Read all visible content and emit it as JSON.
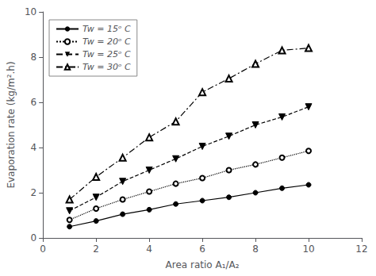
{
  "chart_data": {
    "type": "line",
    "xlabel": "Area ratio A₁/A₂",
    "ylabel": "Evaporation rate (kg/m².h)",
    "x": [
      1,
      2,
      3,
      4,
      5,
      6,
      7,
      8,
      9,
      10
    ],
    "series": [
      {
        "name": "Tw = 15ᵒ C",
        "color": "black",
        "line_style": "solid",
        "marker": "circle",
        "values": [
          0.5,
          0.75,
          1.05,
          1.25,
          1.5,
          1.65,
          1.8,
          2.0,
          2.2,
          2.35
        ]
      },
      {
        "name": "Tw = 20ᵒ C",
        "color": "black",
        "line_style": "dotted",
        "marker": "open circle",
        "values": [
          0.8,
          1.3,
          1.7,
          2.05,
          2.4,
          2.65,
          3.0,
          3.25,
          3.55,
          3.85
        ]
      },
      {
        "name": "Tw = 25ᵒ C",
        "color": "black",
        "line_style": "dashed",
        "marker": "triangle down",
        "values": [
          1.2,
          1.8,
          2.5,
          3.0,
          3.5,
          4.05,
          4.5,
          5.0,
          5.35,
          5.8
        ]
      },
      {
        "name": "Tw = 30ᵒ C",
        "color": "black",
        "line_style": "dashdot",
        "marker": "open triangle up",
        "values": [
          1.7,
          2.7,
          3.55,
          4.45,
          5.15,
          6.45,
          7.05,
          7.7,
          8.3,
          8.4
        ]
      }
    ],
    "xlim": [
      0,
      12
    ],
    "ylim": [
      0,
      10
    ],
    "xticks": [
      0,
      2,
      4,
      6,
      8,
      10,
      12
    ],
    "yticks": [
      0,
      2,
      4,
      6,
      8,
      10
    ],
    "grid": false,
    "legend": "upper left"
  }
}
